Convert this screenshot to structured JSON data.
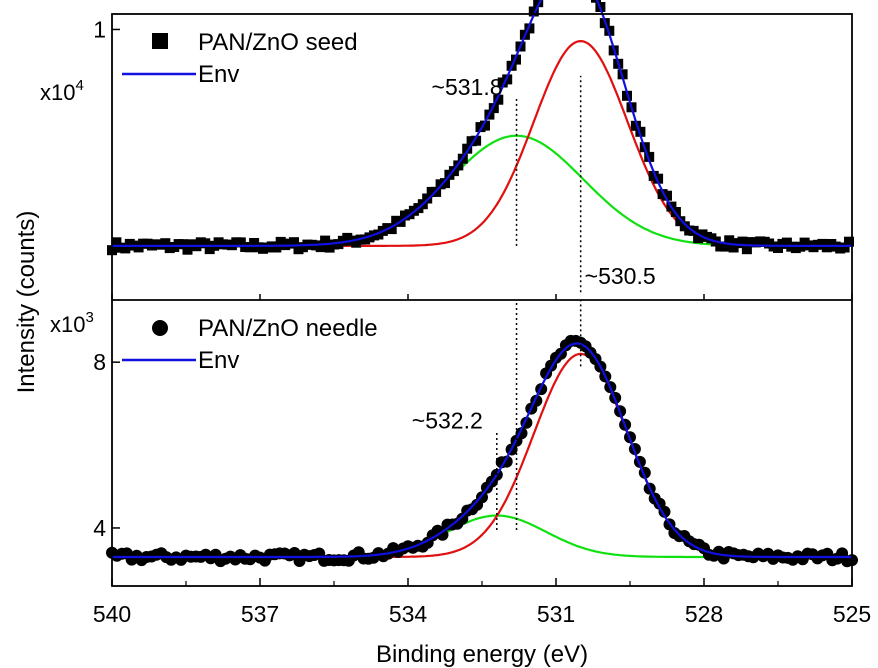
{
  "chart_data": {
    "type": "line",
    "xlabel": "Binding energy (eV)",
    "ylabel": "Intensity (counts)",
    "xlim": [
      540,
      525
    ],
    "x_ticks": [
      "540",
      "537",
      "534",
      "531",
      "528",
      "525"
    ],
    "x_tick_values": [
      540,
      537,
      534,
      531,
      528,
      525
    ],
    "colors": {
      "data": "#000000",
      "envelope": "#1010e0",
      "component_low": "#e01010",
      "component_high": "#10e010"
    },
    "panels": [
      {
        "name": "top",
        "multiplier_base": "x10",
        "multiplier_exp": "4",
        "ylim": [
          0.3,
          1.04
        ],
        "y_ticks": [
          "1"
        ],
        "y_tick_values": [
          1.0
        ],
        "marker": "square",
        "legend": {
          "data_label": "PAN/ZnO seed",
          "env_label": "Env",
          "position": "top-left"
        },
        "baseline": 0.44,
        "peaks": [
          {
            "center": 530.5,
            "height": 0.53,
            "sigma": 0.95,
            "color": "#e01010"
          },
          {
            "center": 531.8,
            "height": 0.285,
            "sigma": 1.35,
            "color": "#10e010"
          }
        ],
        "annotations": [
          {
            "text": "~531.8",
            "x": 531.8,
            "y_from": 0.44,
            "y_to": 0.82,
            "label_side": "left"
          },
          {
            "text": "~530.5",
            "x": 530.5,
            "y_from": 0.32,
            "y_to": 0.88,
            "label_side": "right"
          }
        ]
      },
      {
        "name": "bottom",
        "multiplier_base": "x10",
        "multiplier_exp": "3",
        "ylim": [
          2.6,
          9.5
        ],
        "y_ticks": [
          "8",
          "4"
        ],
        "y_tick_values": [
          8,
          4
        ],
        "marker": "circle",
        "legend": {
          "data_label": "PAN/ZnO needle",
          "env_label": "Env",
          "position": "top-left"
        },
        "baseline": 3.3,
        "peaks": [
          {
            "center": 530.5,
            "height": 4.9,
            "sigma": 0.95,
            "color": "#e01010"
          },
          {
            "center": 532.2,
            "height": 1.0,
            "sigma": 1.0,
            "color": "#10e010"
          }
        ],
        "annotations": [
          {
            "text": "~532.2",
            "x": 532.2,
            "y_from": 3.95,
            "y_to": 6.3,
            "label_side": "left"
          },
          {
            "text": "",
            "x": 531.8,
            "y_from": 3.95,
            "y_to": 9.5,
            "label_side": "none"
          },
          {
            "text": "",
            "x": 530.5,
            "y_from": 7.9,
            "y_to": 9.5,
            "label_side": "none"
          }
        ]
      }
    ]
  }
}
